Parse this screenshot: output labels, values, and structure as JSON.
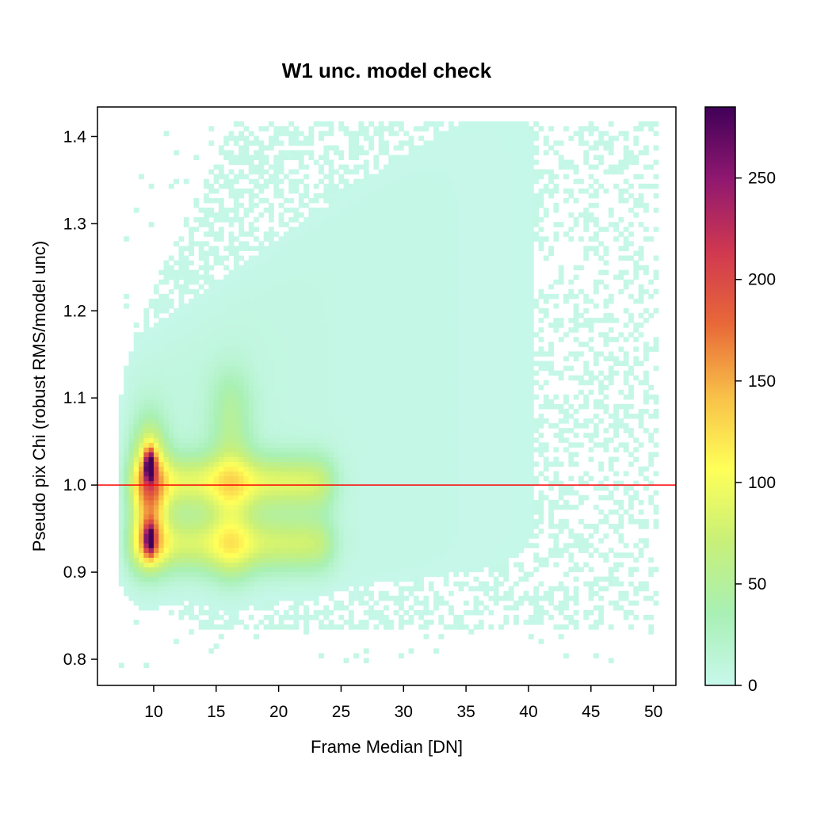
{
  "chart_data": {
    "type": "heatmap",
    "title": "W1 unc. model check",
    "xlabel": "Frame Median [DN]",
    "ylabel": "Pseudo pix Chi (robust RMS/model unc)",
    "xlim": [
      5.5,
      51.8
    ],
    "ylim": [
      0.77,
      1.434
    ],
    "x_ticks": [
      10,
      15,
      20,
      25,
      30,
      35,
      40,
      45,
      50
    ],
    "y_ticks": [
      0.8,
      0.9,
      1.0,
      1.1,
      1.2,
      1.3,
      1.4
    ],
    "y_tick_labels": [
      "0.8",
      "0.9",
      "1.0",
      "1.1",
      "1.2",
      "1.3",
      "1.4"
    ],
    "reference_line": {
      "y": 1.0,
      "color": "#ff0000"
    },
    "colorbar": {
      "range": [
        0,
        285
      ],
      "ticks": [
        0,
        50,
        100,
        150,
        200,
        250
      ],
      "colors": [
        "#c8f8ec",
        "#a8f0b4",
        "#c8f078",
        "#ffff58",
        "#f8c048",
        "#e86838",
        "#d03850",
        "#901870",
        "#400058"
      ]
    },
    "density_features": {
      "main_band": {
        "x": [
          7.5,
          35
        ],
        "y": [
          0.88,
          1.16
        ]
      },
      "core_columns": [
        {
          "x_center": 9.5,
          "y_range": [
            0.92,
            1.04
          ],
          "peak_counts": 285
        },
        {
          "x_center": 16,
          "y_range": [
            0.9,
            1.1
          ],
          "peak_counts": 110
        }
      ],
      "ridges": [
        {
          "y": 1.0,
          "x": [
            8,
            24
          ],
          "counts": 95
        },
        {
          "y": 0.93,
          "x": [
            8,
            24
          ],
          "counts": 85
        }
      ],
      "hotspots": [
        {
          "x": 9.5,
          "y": 1.02,
          "counts": 285
        },
        {
          "x": 9.5,
          "y": 0.935,
          "counts": 240
        }
      ],
      "sparse_cloud": {
        "x": [
          10,
          50
        ],
        "y": [
          0.85,
          1.41
        ]
      }
    }
  }
}
